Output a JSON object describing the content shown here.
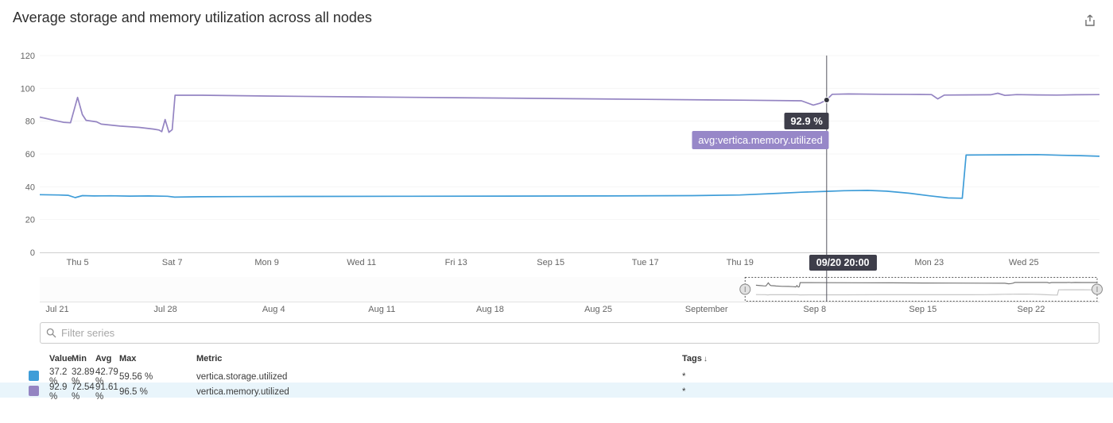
{
  "header": {
    "title": "Average storage and memory utilization across all nodes"
  },
  "filter": {
    "placeholder": "Filter series"
  },
  "chart_data": {
    "type": "line",
    "title": "Average storage and memory utilization across all nodes",
    "ylim": [
      0,
      120
    ],
    "y_ticks": [
      0,
      20,
      40,
      60,
      80,
      100,
      120
    ],
    "x_ticks": [
      {
        "day": 5,
        "label": "Thu 5"
      },
      {
        "day": 7,
        "label": "Sat 7"
      },
      {
        "day": 9,
        "label": "Mon 9"
      },
      {
        "day": 11,
        "label": "Wed 11"
      },
      {
        "day": 13,
        "label": "Fri 13"
      },
      {
        "day": 15,
        "label": "Sep 15"
      },
      {
        "day": 17,
        "label": "Tue 17"
      },
      {
        "day": 19,
        "label": "Thu 19"
      },
      {
        "day": 23,
        "label": "Mon 23"
      },
      {
        "day": 25,
        "label": "Wed 25"
      }
    ],
    "series": [
      {
        "id": "storage",
        "name": "avg:vertica.storage.utilized",
        "color": "#3f9dd8",
        "points": [
          [
            4.2,
            35.2
          ],
          [
            4.6,
            35.0
          ],
          [
            4.8,
            34.8
          ],
          [
            4.95,
            33.4
          ],
          [
            5.1,
            34.6
          ],
          [
            5.35,
            34.4
          ],
          [
            5.7,
            34.5
          ],
          [
            6.1,
            34.3
          ],
          [
            6.5,
            34.4
          ],
          [
            6.9,
            34.2
          ],
          [
            7.05,
            33.7
          ],
          [
            7.6,
            33.9
          ],
          [
            8.5,
            34.0
          ],
          [
            10,
            34.1
          ],
          [
            12,
            34.2
          ],
          [
            14,
            34.3
          ],
          [
            16,
            34.4
          ],
          [
            18,
            34.6
          ],
          [
            19,
            35.0
          ],
          [
            19.8,
            36.0
          ],
          [
            20.3,
            36.7
          ],
          [
            20.83,
            37.2
          ],
          [
            21.2,
            37.6
          ],
          [
            21.7,
            37.8
          ],
          [
            22.1,
            37.3
          ],
          [
            22.6,
            36.0
          ],
          [
            23.0,
            34.5
          ],
          [
            23.4,
            33.2
          ],
          [
            23.7,
            33.0
          ],
          [
            23.78,
            59.3
          ],
          [
            24.2,
            59.4
          ],
          [
            24.8,
            59.5
          ],
          [
            25.3,
            59.6
          ],
          [
            25.8,
            59.2
          ],
          [
            26.2,
            59.0
          ],
          [
            26.6,
            58.6
          ]
        ]
      },
      {
        "id": "memory",
        "name": "avg:vertica.memory.utilized",
        "color": "#9484c2",
        "points": [
          [
            4.2,
            82.5
          ],
          [
            4.5,
            80.5
          ],
          [
            4.7,
            79.3
          ],
          [
            4.85,
            79.0
          ],
          [
            5.0,
            94.5
          ],
          [
            5.1,
            84.0
          ],
          [
            5.18,
            80.5
          ],
          [
            5.4,
            79.6
          ],
          [
            5.5,
            78.2
          ],
          [
            5.9,
            77.0
          ],
          [
            6.3,
            76.2
          ],
          [
            6.6,
            75.2
          ],
          [
            6.72,
            74.6
          ],
          [
            6.78,
            73.6
          ],
          [
            6.85,
            81.0
          ],
          [
            6.93,
            73.2
          ],
          [
            7.0,
            74.8
          ],
          [
            7.06,
            95.8
          ],
          [
            7.6,
            95.8
          ],
          [
            9,
            95.3
          ],
          [
            11,
            94.8
          ],
          [
            13,
            94.3
          ],
          [
            15,
            93.8
          ],
          [
            17,
            93.3
          ],
          [
            19,
            92.8
          ],
          [
            20.3,
            92.4
          ],
          [
            20.55,
            89.8
          ],
          [
            20.7,
            91.0
          ],
          [
            20.83,
            92.9
          ],
          [
            20.95,
            96.4
          ],
          [
            21.3,
            96.6
          ],
          [
            22,
            96.4
          ],
          [
            22.8,
            96.3
          ],
          [
            23.05,
            96.2
          ],
          [
            23.18,
            93.6
          ],
          [
            23.32,
            95.9
          ],
          [
            23.7,
            96.0
          ],
          [
            24.3,
            96.1
          ],
          [
            24.45,
            97.0
          ],
          [
            24.6,
            95.7
          ],
          [
            24.85,
            96.2
          ],
          [
            25.3,
            96.0
          ],
          [
            25.7,
            95.9
          ],
          [
            26.1,
            96.1
          ],
          [
            26.6,
            96.2
          ]
        ]
      }
    ],
    "hover": {
      "day": 20.833,
      "value": 92.9,
      "value_label": "92.9 %",
      "series_label": "avg:vertica.memory.utilized",
      "time_label": "09/20 20:00"
    },
    "minimap": {
      "x_ticks": [
        {
          "offset": 0,
          "label": "Jul 21"
        },
        {
          "offset": 7,
          "label": "Jul 28"
        },
        {
          "offset": 14,
          "label": "Aug 4"
        },
        {
          "offset": 21,
          "label": "Aug 11"
        },
        {
          "offset": 28,
          "label": "Aug 18"
        },
        {
          "offset": 35,
          "label": "Aug 25"
        },
        {
          "offset": 42,
          "label": "September"
        },
        {
          "offset": 49,
          "label": "Sep 8"
        },
        {
          "offset": 56,
          "label": "Sep 15"
        },
        {
          "offset": 63,
          "label": "Sep 22"
        }
      ],
      "selection": {
        "start_offset": 44.5,
        "end_offset": 67.35
      }
    }
  },
  "series_table": {
    "headers": [
      "Value",
      "Min",
      "Avg",
      "Max",
      "Metric"
    ],
    "tags_header": "Tags",
    "sort_arrow": "↓",
    "rows": [
      {
        "color": "#3f9dd8",
        "value": "37.2 %",
        "min": "32.89 %",
        "avg": "42.79 %",
        "max": "59.56 %",
        "metric": "vertica.storage.utilized",
        "tags": "*",
        "highlighted": false
      },
      {
        "color": "#9484c2",
        "value": "92.9 %",
        "min": "72.54 %",
        "avg": "91.61 %",
        "max": "96.5 %",
        "metric": "vertica.memory.utilized",
        "tags": "*",
        "highlighted": true
      }
    ]
  }
}
